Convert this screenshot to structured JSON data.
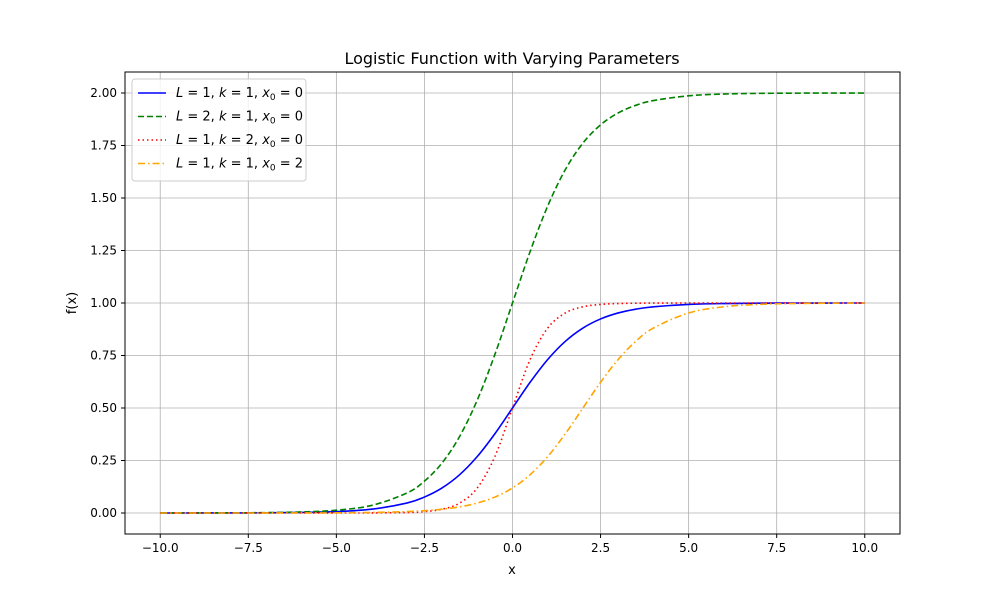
{
  "chart_data": {
    "type": "line",
    "title": "Logistic Function with Varying Parameters",
    "xlabel": "x",
    "ylabel": "f(x)",
    "xlim": [
      -11,
      11
    ],
    "ylim": [
      -0.1,
      2.1
    ],
    "x_ticks": [
      -10.0,
      -7.5,
      -5.0,
      -2.5,
      0.0,
      2.5,
      5.0,
      7.5,
      10.0
    ],
    "x_tick_labels": [
      "−10.0",
      "−7.5",
      "−5.0",
      "−2.5",
      "0.0",
      "2.5",
      "5.0",
      "7.5",
      "10.0"
    ],
    "y_ticks": [
      0.0,
      0.25,
      0.5,
      0.75,
      1.0,
      1.25,
      1.5,
      1.75,
      2.0
    ],
    "y_tick_labels": [
      "0.00",
      "0.25",
      "0.50",
      "0.75",
      "1.00",
      "1.25",
      "1.50",
      "1.75",
      "2.00"
    ],
    "grid": true,
    "legend_position": "top-left",
    "x": [
      -10,
      -9,
      -8,
      -7,
      -6,
      -5,
      -4,
      -3,
      -2.5,
      -2,
      -1.5,
      -1,
      -0.5,
      0,
      0.5,
      1,
      1.5,
      2,
      2.5,
      3,
      3.5,
      4,
      5,
      6,
      7,
      8,
      9,
      10
    ],
    "series": [
      {
        "name": "L=1, k=1, x0=0",
        "label_parts": {
          "L": "1",
          "k": "1",
          "x0": "0"
        },
        "color": "#0000ff",
        "style": "solid",
        "values": [
          0.0,
          0.0001,
          0.0003,
          0.0009,
          0.0025,
          0.0067,
          0.018,
          0.0474,
          0.0759,
          0.1192,
          0.1824,
          0.2689,
          0.3775,
          0.5,
          0.6225,
          0.7311,
          0.8176,
          0.8808,
          0.9241,
          0.9526,
          0.9707,
          0.982,
          0.9933,
          0.9975,
          0.9991,
          0.9997,
          0.9999,
          1.0
        ]
      },
      {
        "name": "L=2, k=1, x0=0",
        "label_parts": {
          "L": "2",
          "k": "1",
          "x0": "0"
        },
        "color": "#008000",
        "style": "dashed",
        "values": [
          0.0001,
          0.0002,
          0.0007,
          0.0018,
          0.0049,
          0.0134,
          0.036,
          0.0949,
          0.1517,
          0.2384,
          0.3649,
          0.5379,
          0.7551,
          1.0,
          1.2449,
          1.4621,
          1.6351,
          1.7616,
          1.8483,
          1.9051,
          1.9414,
          1.964,
          1.9866,
          1.9951,
          1.9982,
          1.9993,
          1.9998,
          1.9999
        ]
      },
      {
        "name": "L=1, k=2, x0=0",
        "label_parts": {
          "L": "1",
          "k": "2",
          "x0": "0"
        },
        "color": "#ff0000",
        "style": "dotted",
        "values": [
          0.0,
          0.0,
          0.0,
          0.0,
          0.0,
          0.0,
          0.0003,
          0.0025,
          0.0067,
          0.018,
          0.0474,
          0.1192,
          0.2689,
          0.5,
          0.7311,
          0.8808,
          0.9526,
          0.982,
          0.9933,
          0.9975,
          0.9991,
          0.9997,
          1.0,
          1.0,
          1.0,
          1.0,
          1.0,
          1.0
        ]
      },
      {
        "name": "L=1, k=1, x0=2",
        "label_parts": {
          "L": "1",
          "k": "1",
          "x0": "2"
        },
        "color": "#ffa500",
        "style": "dashdot",
        "values": [
          0.0,
          0.0,
          0.0,
          0.0001,
          0.0003,
          0.0009,
          0.0025,
          0.0067,
          0.011,
          0.018,
          0.0293,
          0.0474,
          0.0759,
          0.1192,
          0.1824,
          0.2689,
          0.3775,
          0.5,
          0.6225,
          0.7311,
          0.8176,
          0.8808,
          0.9526,
          0.982,
          0.9933,
          0.9975,
          0.9991,
          0.9997
        ]
      }
    ]
  }
}
